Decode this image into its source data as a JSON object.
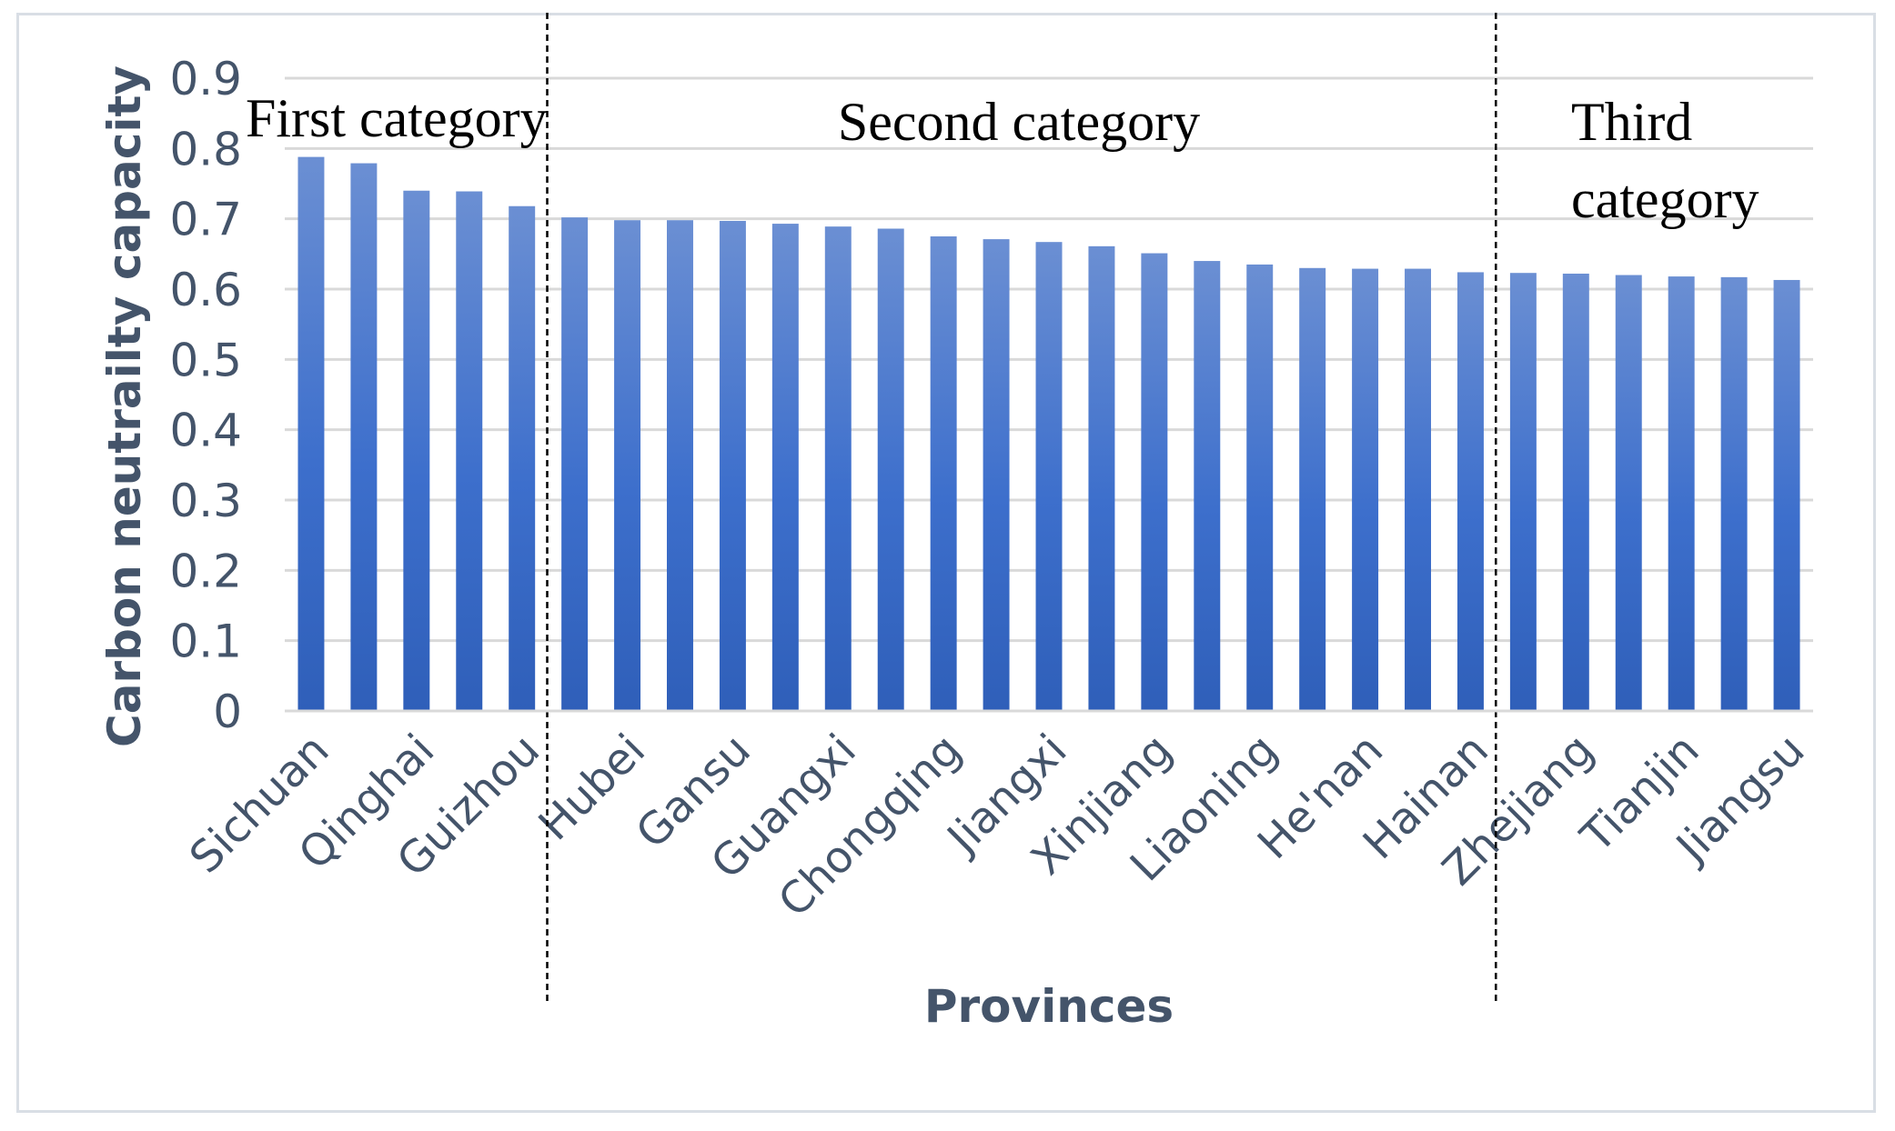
{
  "chart_data": {
    "type": "bar",
    "xlabel": "Provinces",
    "ylabel": "Carbon neutrailty capacity",
    "ylim": [
      0,
      0.9
    ],
    "yticks": [
      "0",
      "0.1",
      "0.2",
      "0.3",
      "0.4",
      "0.5",
      "0.6",
      "0.7",
      "0.8",
      "0.9"
    ],
    "grid": true,
    "categories": [
      "Sichuan",
      "",
      "Qinghai",
      "",
      "Guizhou",
      "",
      "Hubei",
      "",
      "Gansu",
      "",
      "Guangxi",
      "",
      "Chongqing",
      "",
      "Jiangxi",
      "",
      "Xinjiang",
      "",
      "Liaoning",
      "",
      "He'nan",
      "",
      "Hainan",
      "",
      "Zhejiang",
      "",
      "Tianjin",
      "",
      "Jiangsu"
    ],
    "values": [
      0.788,
      0.779,
      0.74,
      0.739,
      0.718,
      0.702,
      0.698,
      0.698,
      0.697,
      0.693,
      0.689,
      0.686,
      0.675,
      0.671,
      0.667,
      0.661,
      0.651,
      0.64,
      0.635,
      0.63,
      0.629,
      0.629,
      0.624,
      0.623,
      0.622,
      0.62,
      0.618,
      0.617,
      0.613
    ],
    "bar_color": "#4472c4",
    "groups": [
      {
        "label": "First category",
        "lines": [
          "First category"
        ],
        "start": 0,
        "end": 4
      },
      {
        "label": "Second category",
        "lines": [
          "Second category"
        ],
        "start": 5,
        "end": 22
      },
      {
        "label": "Third category",
        "lines": [
          "Third",
          "category"
        ],
        "start": 23,
        "end": 28
      }
    ]
  }
}
